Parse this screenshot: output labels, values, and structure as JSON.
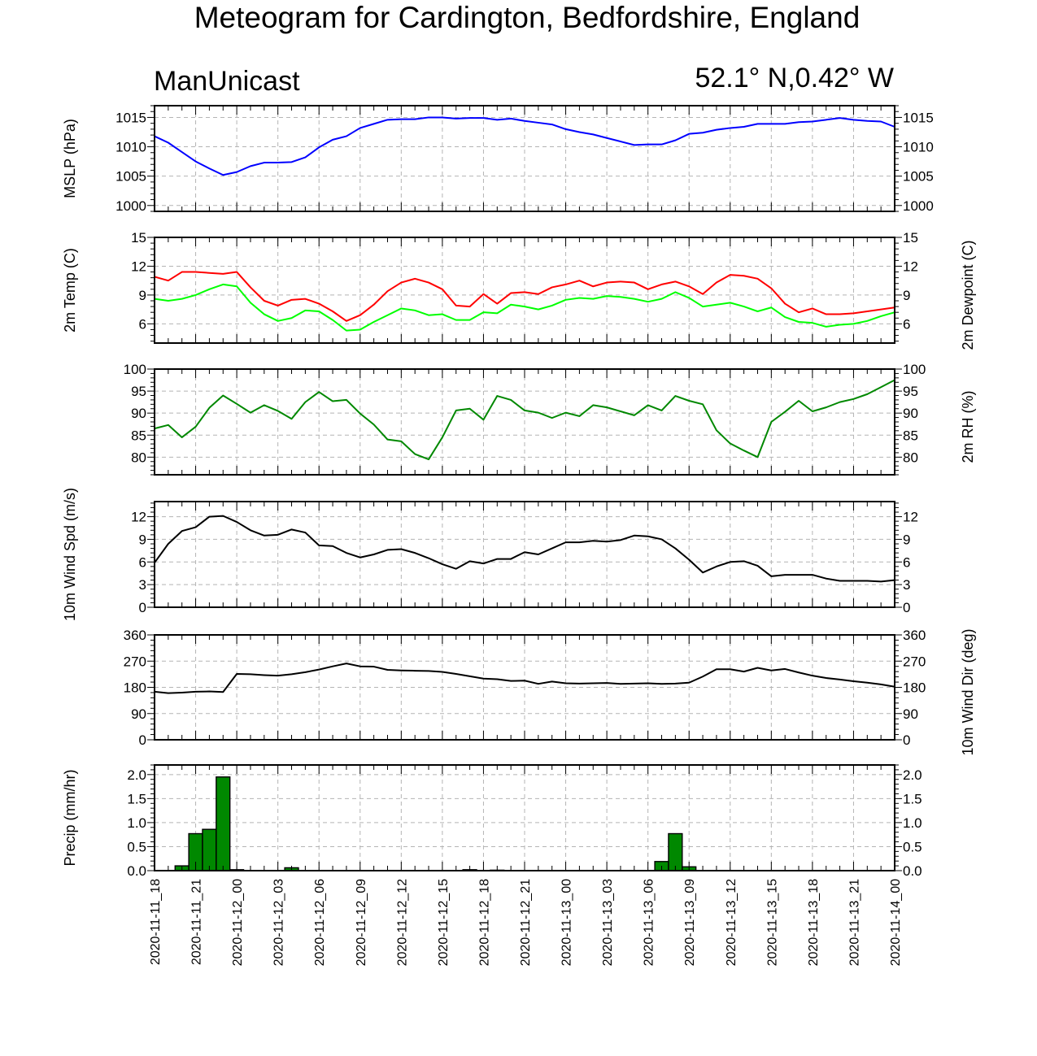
{
  "chart_data": {
    "type": "line",
    "title": "Meteogram for Cardington, Bedfordshire, England",
    "model": "ManUnicast",
    "location": "52.1° N,0.42° W",
    "x_tick_labels": [
      "2020-11-11_18",
      "2020-11-11_21",
      "2020-11-12_00",
      "2020-11-12_03",
      "2020-11-12_06",
      "2020-11-12_09",
      "2020-11-12_12",
      "2020-11-12_15",
      "2020-11-12_18",
      "2020-11-12_21",
      "2020-11-13_00",
      "2020-11-13_03",
      "2020-11-13_06",
      "2020-11-13_09",
      "2020-11-13_12",
      "2020-11-13_15",
      "2020-11-13_18",
      "2020-11-13_21",
      "2020-11-14_00"
    ],
    "x_hours_range": [
      0,
      54
    ],
    "grid": true,
    "panels": [
      {
        "id": "mslp",
        "ylabel_left": "MSLP (hPa)",
        "ylabel_right": "",
        "ylim": [
          999,
          1017
        ],
        "yticks": [
          1000,
          1005,
          1010,
          1015
        ],
        "ytick_labels": [
          "1000",
          "1005",
          "1010",
          "1015"
        ],
        "series": [
          {
            "color": "#0000ff",
            "values": [
              1011.8,
              1010.7,
              1009.1,
              1007.5,
              1006.3,
              1005.2,
              1005.7,
              1006.7,
              1007.3,
              1007.3,
              1007.4,
              1008.2,
              1009.9,
              1011.2,
              1011.8,
              1013.2,
              1013.9,
              1014.6,
              1014.7,
              1014.7,
              1015.0,
              1015.0,
              1014.8,
              1014.9,
              1014.9,
              1014.6,
              1014.8,
              1014.4,
              1014.1,
              1013.8,
              1013.0,
              1012.5,
              1012.1,
              1011.5,
              1010.9,
              1010.3,
              1010.4,
              1010.4,
              1011.1,
              1012.2,
              1012.4,
              1012.9,
              1013.2,
              1013.4,
              1013.9,
              1013.9,
              1013.9,
              1014.2,
              1014.3,
              1014.6,
              1014.9,
              1014.6,
              1014.4,
              1014.3,
              1013.4
            ]
          }
        ]
      },
      {
        "id": "temp",
        "ylabel_left": "2m Temp (C)",
        "ylabel_right": "2m Dewpoint (C)",
        "ylim": [
          4,
          15
        ],
        "yticks": [
          6,
          9,
          12,
          15
        ],
        "ytick_labels": [
          "6",
          "9",
          "12",
          "15"
        ],
        "series": [
          {
            "color": "#ff0000",
            "values": [
              10.9,
              10.5,
              11.4,
              11.4,
              11.3,
              11.2,
              11.4,
              9.8,
              8.4,
              7.9,
              8.5,
              8.6,
              8.1,
              7.3,
              6.3,
              6.9,
              8.0,
              9.4,
              10.3,
              10.7,
              10.3,
              9.6,
              7.9,
              7.8,
              9.1,
              8.1,
              9.2,
              9.3,
              9.1,
              9.8,
              10.1,
              10.5,
              9.9,
              10.3,
              10.4,
              10.3,
              9.6,
              10.1,
              10.4,
              9.9,
              9.1,
              10.3,
              11.1,
              11.0,
              10.7,
              9.7,
              8.1,
              7.2,
              7.6,
              7.0,
              7.0,
              7.1,
              7.3,
              7.5,
              7.7
            ]
          },
          {
            "color": "#00ff00",
            "values": [
              8.6,
              8.4,
              8.6,
              9.0,
              9.6,
              10.1,
              9.9,
              8.2,
              7.0,
              6.3,
              6.6,
              7.4,
              7.3,
              6.4,
              5.3,
              5.4,
              6.2,
              6.9,
              7.6,
              7.4,
              6.9,
              7.0,
              6.4,
              6.4,
              7.2,
              7.1,
              8.0,
              7.8,
              7.5,
              7.9,
              8.5,
              8.7,
              8.6,
              8.9,
              8.8,
              8.6,
              8.3,
              8.6,
              9.3,
              8.7,
              7.8,
              8.0,
              8.2,
              7.8,
              7.3,
              7.7,
              6.7,
              6.2,
              6.1,
              5.7,
              5.9,
              6.0,
              6.3,
              6.8,
              7.2
            ]
          }
        ]
      },
      {
        "id": "rh",
        "ylabel_left": "",
        "ylabel_right": "2m RH (%)",
        "ylim": [
          76,
          100
        ],
        "yticks": [
          80,
          85,
          90,
          95,
          100
        ],
        "ytick_labels": [
          "80",
          "85",
          "90",
          "95",
          "100"
        ],
        "series": [
          {
            "color": "#008800",
            "values": [
              86.5,
              87.3,
              84.5,
              86.9,
              91.2,
              94.0,
              92.1,
              90.1,
              91.8,
              90.5,
              88.7,
              92.5,
              94.8,
              92.7,
              93.0,
              89.9,
              87.4,
              84.0,
              83.6,
              80.7,
              79.5,
              84.5,
              90.6,
              91.0,
              88.5,
              93.9,
              93.0,
              90.6,
              90.1,
              88.9,
              90.1,
              89.3,
              91.8,
              91.3,
              90.4,
              89.5,
              91.8,
              90.6,
              93.9,
              92.8,
              92.0,
              86.1,
              83.1,
              81.5,
              80.0,
              88.0,
              90.3,
              92.8,
              90.4,
              91.3,
              92.5,
              93.2,
              94.3,
              95.9,
              97.5
            ]
          }
        ]
      },
      {
        "id": "wspd",
        "ylabel_left": "10m Wind Spd (m/s)",
        "ylabel_right": "",
        "ylim": [
          0,
          14
        ],
        "yticks": [
          0,
          3,
          6,
          9,
          12
        ],
        "ytick_labels": [
          "0",
          "3",
          "6",
          "9",
          "12"
        ],
        "series": [
          {
            "color": "#000000",
            "values": [
              5.9,
              8.4,
              10.1,
              10.6,
              12.0,
              12.1,
              11.3,
              10.2,
              9.5,
              9.6,
              10.3,
              9.9,
              8.2,
              8.1,
              7.2,
              6.6,
              7.0,
              7.6,
              7.7,
              7.2,
              6.5,
              5.7,
              5.1,
              6.1,
              5.8,
              6.4,
              6.4,
              7.3,
              7.0,
              7.8,
              8.6,
              8.6,
              8.8,
              8.7,
              8.9,
              9.5,
              9.4,
              9.0,
              7.8,
              6.3,
              4.6,
              5.4,
              6.0,
              6.1,
              5.5,
              4.1,
              4.3,
              4.3,
              4.3,
              3.8,
              3.5,
              3.5,
              3.5,
              3.4,
              3.6
            ]
          }
        ]
      },
      {
        "id": "wdir",
        "ylabel_left": "",
        "ylabel_right": "10m Wind Dir (deg)",
        "ylim": [
          0,
          360
        ],
        "yticks": [
          0,
          90,
          180,
          270,
          360
        ],
        "ytick_labels": [
          "0",
          "90",
          "180",
          "270",
          "360"
        ],
        "series": [
          {
            "color": "#000000",
            "values": [
              165,
              160,
              162,
              165,
              166,
              164,
              226,
              225,
              222,
              220,
              225,
              232,
              241,
              252,
              262,
              252,
              251,
              240,
              238,
              237,
              236,
              233,
              226,
              218,
              210,
              208,
              202,
              203,
              192,
              200,
              194,
              193,
              194,
              195,
              192,
              193,
              194,
              192,
              193,
              196,
              217,
              242,
              242,
              234,
              247,
              238,
              243,
              231,
              220,
              212,
              207,
              201,
              196,
              190,
              182
            ]
          }
        ]
      },
      {
        "id": "precip",
        "type": "bar",
        "ylabel_left": "Precip (mm/hr)",
        "ylabel_right": "",
        "ylim": [
          0,
          2.2
        ],
        "yticks": [
          0.0,
          0.5,
          1.0,
          1.5,
          2.0
        ],
        "ytick_labels": [
          "0.0",
          "0.5",
          "1.0",
          "1.5",
          "2.0"
        ],
        "bar_color": "#008800",
        "bars": [
          {
            "hour": 2,
            "value": 0.1
          },
          {
            "hour": 3,
            "value": 0.77
          },
          {
            "hour": 4,
            "value": 0.86
          },
          {
            "hour": 5,
            "value": 1.95
          },
          {
            "hour": 6,
            "value": 0.02
          },
          {
            "hour": 10,
            "value": 0.06
          },
          {
            "hour": 23,
            "value": 0.02
          },
          {
            "hour": 25,
            "value": 0.01
          },
          {
            "hour": 37,
            "value": 0.19
          },
          {
            "hour": 38,
            "value": 0.77
          },
          {
            "hour": 39,
            "value": 0.08
          }
        ]
      }
    ]
  }
}
